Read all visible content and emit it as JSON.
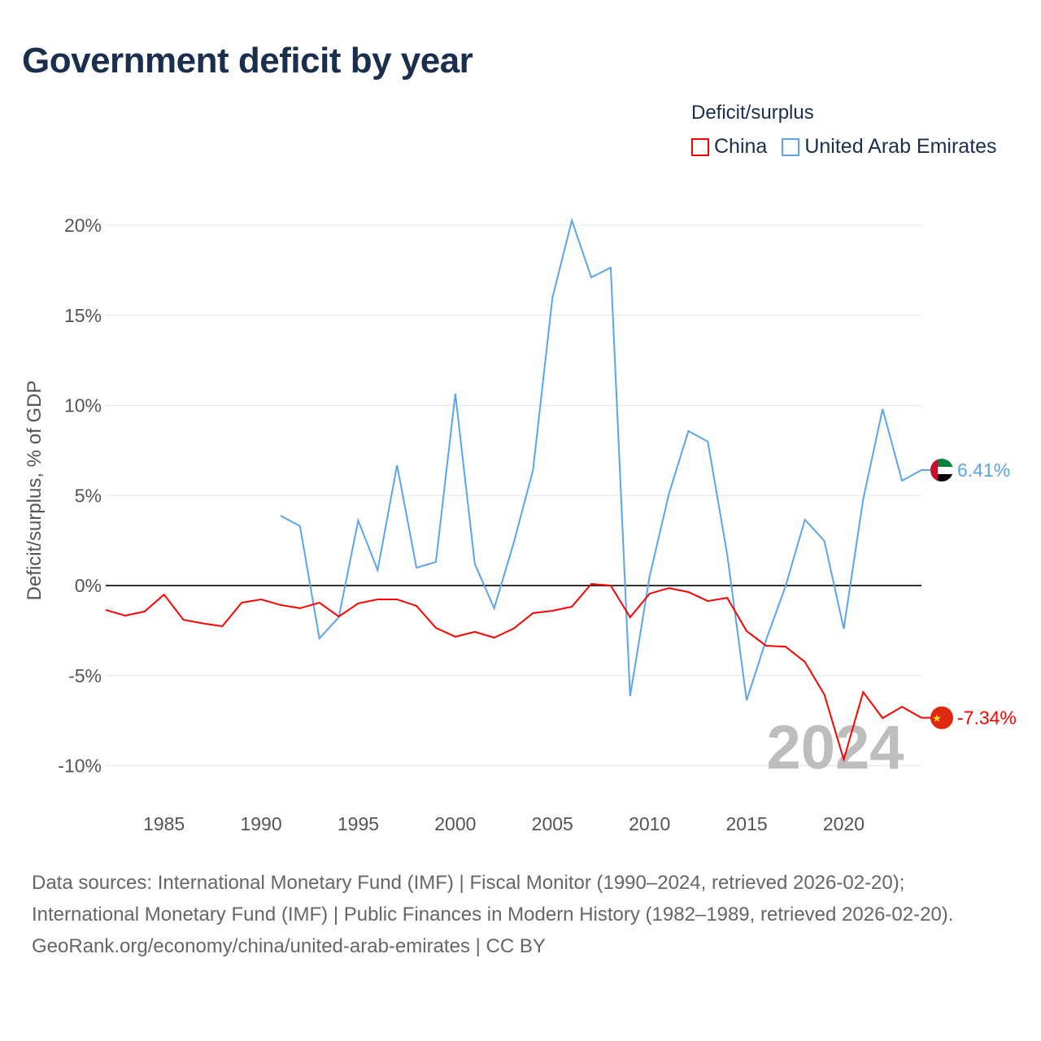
{
  "title": "Government deficit by year",
  "legend": {
    "title": "Deficit/surplus",
    "items": [
      {
        "label": "China",
        "color": "#ff0000"
      },
      {
        "label": "United Arab Emirates",
        "color": "#5ca5ea"
      }
    ]
  },
  "watermark_year": "2024",
  "footer": {
    "sources": "Data sources: International Monetary Fund (IMF) | Fiscal Monitor (1990–2024, retrieved 2026-02-20); International Monetary Fund (IMF) | Public Finances in Modern History (1982–1989, retrieved 2026-02-20).",
    "credit": "GeoRank.org/economy/china/united-arab-emirates | CC BY"
  },
  "chart_data": {
    "type": "line",
    "title": "Government deficit by year",
    "ylabel": "Deficit/surplus, % of GDP",
    "xlabel": "",
    "xlim": [
      1982,
      2024
    ],
    "ylim": [
      -10,
      20
    ],
    "xticks": [
      1985,
      1990,
      1995,
      2000,
      2005,
      2010,
      2015,
      2020
    ],
    "yticks": [
      {
        "v": 20,
        "label": "20%"
      },
      {
        "v": 15,
        "label": "15%"
      },
      {
        "v": 10,
        "label": "10%"
      },
      {
        "v": 5,
        "label": "5%"
      },
      {
        "v": 0,
        "label": "0%"
      },
      {
        "v": -5,
        "label": "-5%"
      },
      {
        "v": -10,
        "label": "-10%"
      }
    ],
    "grid": true,
    "legend_position": "top-right",
    "series": [
      {
        "name": "China",
        "color": "#ff0000",
        "end_label": "-7.34%",
        "start": 1982,
        "values": [
          -1.35,
          -1.67,
          -1.44,
          -0.5,
          -1.9,
          -2.1,
          -2.26,
          -0.95,
          -0.77,
          -1.08,
          -1.26,
          -0.95,
          -1.72,
          -0.99,
          -0.77,
          -0.77,
          -1.13,
          -2.35,
          -2.84,
          -2.57,
          -2.89,
          -2.39,
          -1.53,
          -1.4,
          -1.17,
          0.09,
          0,
          -1.76,
          -0.45,
          -0.14,
          -0.36,
          -0.86,
          -0.68,
          -2.53,
          -3.34,
          -3.39,
          -4.24,
          -6.05,
          -9.66,
          -5.91,
          -7.36,
          -6.73,
          -7.34
        ]
      },
      {
        "name": "United Arab Emirates",
        "color": "#5ca5ea",
        "end_label": "6.41%",
        "start": 1991,
        "values": [
          3.88,
          3.3,
          -2.93,
          -1.76,
          3.61,
          0.86,
          6.68,
          0.99,
          1.31,
          10.65,
          1.22,
          -1.26,
          2.35,
          6.41,
          15.98,
          20.27,
          17.11,
          17.65,
          -6.14,
          0.5,
          5.1,
          8.58,
          7.99,
          1.72,
          -6.37,
          -3.02,
          -0.05,
          3.66,
          2.48,
          -2.39,
          4.79,
          9.8,
          5.82,
          6.41
        ]
      }
    ]
  }
}
